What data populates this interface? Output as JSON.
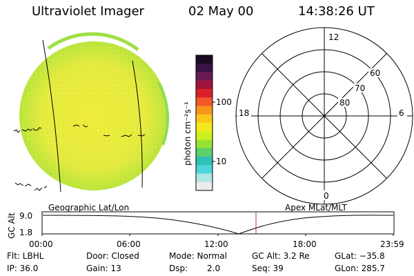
{
  "header": {
    "instrument": "Ultraviolet Imager",
    "date": "02 May 00",
    "time": "14:38:26 UT"
  },
  "colorbar": {
    "label": "photon cm⁻²s⁻¹",
    "tick_100": "100",
    "tick_10": "10",
    "colors_top_to_bottom": [
      "#1a0b22",
      "#3a1245",
      "#6a1a52",
      "#a0143c",
      "#d9202a",
      "#f0582a",
      "#f6961c",
      "#fbc81a",
      "#f3ea1c",
      "#cfee21",
      "#97e335",
      "#59d06a",
      "#2fc1b4",
      "#4fd3dc",
      "#aee5e5",
      "#ececec"
    ]
  },
  "polar_plot": {
    "mlt_labels": {
      "top": "12",
      "left": "18",
      "right": "6",
      "bottom": "0"
    },
    "lat_labels": [
      "60",
      "70",
      "80"
    ]
  },
  "map_labels": {
    "left": "Geographic Lat/Lon",
    "right": "Apex MLat/MLT"
  },
  "altitude_panel": {
    "ylabel": "GC Alt",
    "ytick_top": "9.0",
    "ytick_bottom": "1.8",
    "xticks": [
      "00:00",
      "06:00",
      "12:00",
      "18:00",
      "23:59"
    ],
    "marker_color": "#c0282e"
  },
  "info": {
    "flt": "Flt: LBHL",
    "ip": "IP: 36.0",
    "door": "Door: Closed",
    "gain": "Gain: 13",
    "mode": "Mode: Normal",
    "dsp_label": "Dsp:",
    "dsp_value": "2.0",
    "gc_alt": "GC Alt: 3.2 Re",
    "seq": "Seq: 39",
    "glat": "GLat: −35.8",
    "glon": "GLon: 285.7"
  }
}
